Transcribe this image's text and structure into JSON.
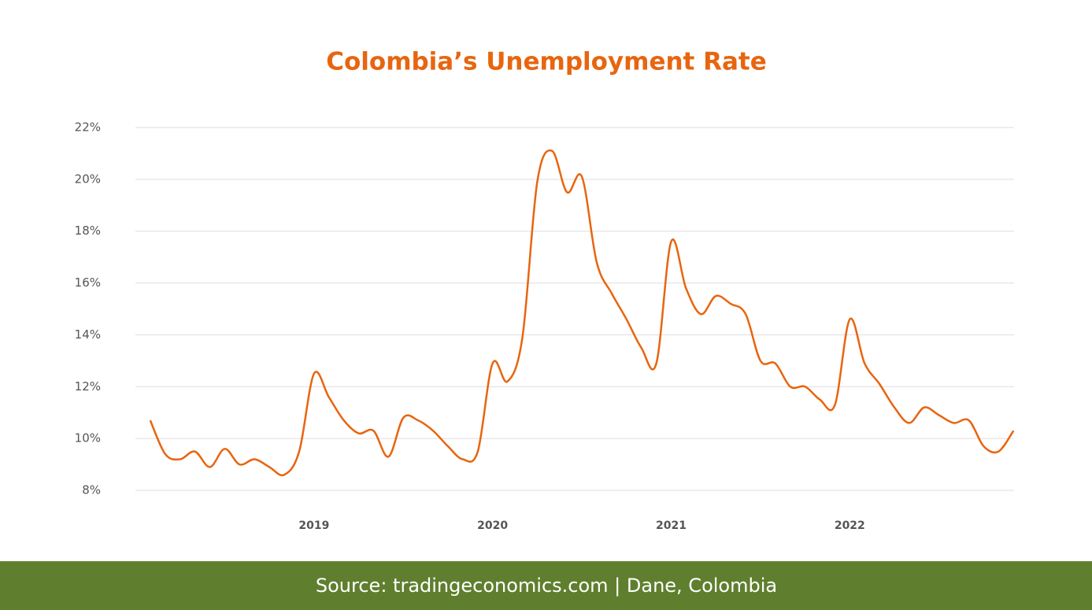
{
  "chart_data": {
    "type": "line",
    "title": "Colombia’s Unemployment Rate",
    "source": "Source: tradingeconomics.com | Dane, Colombia",
    "x": [
      2018.083,
      2018.167,
      2018.25,
      2018.333,
      2018.417,
      2018.5,
      2018.583,
      2018.667,
      2018.75,
      2018.833,
      2018.917,
      2019,
      2019.083,
      2019.167,
      2019.25,
      2019.333,
      2019.417,
      2019.5,
      2019.583,
      2019.667,
      2019.75,
      2019.833,
      2019.917,
      2020,
      2020.083,
      2020.167,
      2020.25,
      2020.333,
      2020.417,
      2020.5,
      2020.583,
      2020.667,
      2020.75,
      2020.833,
      2020.917,
      2021,
      2021.083,
      2021.167,
      2021.25,
      2021.333,
      2021.417,
      2021.5,
      2021.583,
      2021.667,
      2021.75,
      2021.833,
      2021.917,
      2022,
      2022.083,
      2022.167,
      2022.25,
      2022.333,
      2022.417,
      2022.5,
      2022.583,
      2022.667,
      2022.75,
      2022.833,
      2022.917
    ],
    "series": [
      {
        "name": "Unemployment rate",
        "color": "#e8650f",
        "values": [
          10.7,
          9.4,
          9.2,
          9.5,
          8.9,
          9.6,
          9.0,
          9.2,
          8.9,
          8.6,
          9.5,
          12.5,
          11.6,
          10.7,
          10.2,
          10.3,
          9.3,
          10.8,
          10.7,
          10.3,
          9.7,
          9.2,
          9.5,
          12.9,
          12.2,
          13.9,
          19.9,
          21.1,
          19.5,
          20.1,
          16.8,
          15.6,
          14.6,
          13.5,
          12.9,
          17.6,
          15.8,
          14.8,
          15.5,
          15.2,
          14.8,
          13.0,
          12.9,
          12.0,
          12.0,
          11.5,
          11.3,
          14.6,
          12.9,
          12.1,
          11.2,
          10.6,
          11.2,
          10.9,
          10.6,
          10.7,
          9.7,
          9.5,
          10.3
        ]
      }
    ],
    "xlim": [
      2018.0,
      2022.92
    ],
    "xticks": [
      2019,
      2020,
      2021,
      2022
    ],
    "ylim": [
      8,
      22
    ],
    "yticks": [
      {
        "value": 8,
        "label": "8%"
      },
      {
        "value": 10,
        "label": "10%"
      },
      {
        "value": 12,
        "label": "12%"
      },
      {
        "value": 14,
        "label": "14%"
      },
      {
        "value": 16,
        "label": "16%"
      },
      {
        "value": 18,
        "label": "18%"
      },
      {
        "value": 20,
        "label": "20%"
      },
      {
        "value": 22,
        "label": "22%"
      }
    ],
    "grid": true
  }
}
